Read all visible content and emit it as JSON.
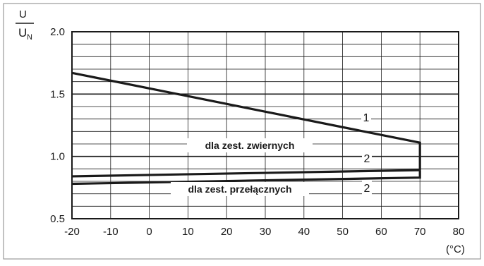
{
  "chart_data": {
    "type": "line",
    "ylabel": {
      "numerator": "U",
      "denominator": "U",
      "denominator_subscript": "N"
    },
    "xunit": "(°C)",
    "xlim": [
      -20,
      80
    ],
    "ylim": [
      0.5,
      2.0
    ],
    "x_ticks": [
      "-20",
      "-10",
      "0",
      "10",
      "20",
      "30",
      "40",
      "50",
      "60",
      "70",
      "80"
    ],
    "y_ticks": [
      "0.5",
      "1.0",
      "1.5",
      "2.0"
    ],
    "grid": true,
    "series": [
      {
        "name": "1",
        "x": [
          -20,
          70,
          70
        ],
        "y": [
          1.67,
          1.11,
          0.89
        ]
      },
      {
        "name": "2",
        "x": [
          -20,
          70
        ],
        "y": [
          0.84,
          0.89
        ]
      },
      {
        "name": "2",
        "x": [
          -20,
          70,
          70
        ],
        "y": [
          0.78,
          0.83,
          0.89
        ]
      }
    ],
    "annotations": {
      "upper_group": "dla zest. zwiernych",
      "lower_group": "dla zest. przełącznych",
      "label_1": "1",
      "label_2_upper": "2",
      "label_2_lower": "2"
    }
  },
  "colors": {
    "line": "#1a1a1a",
    "grid": "#1a1a1a",
    "border": "#9a9a9a"
  }
}
